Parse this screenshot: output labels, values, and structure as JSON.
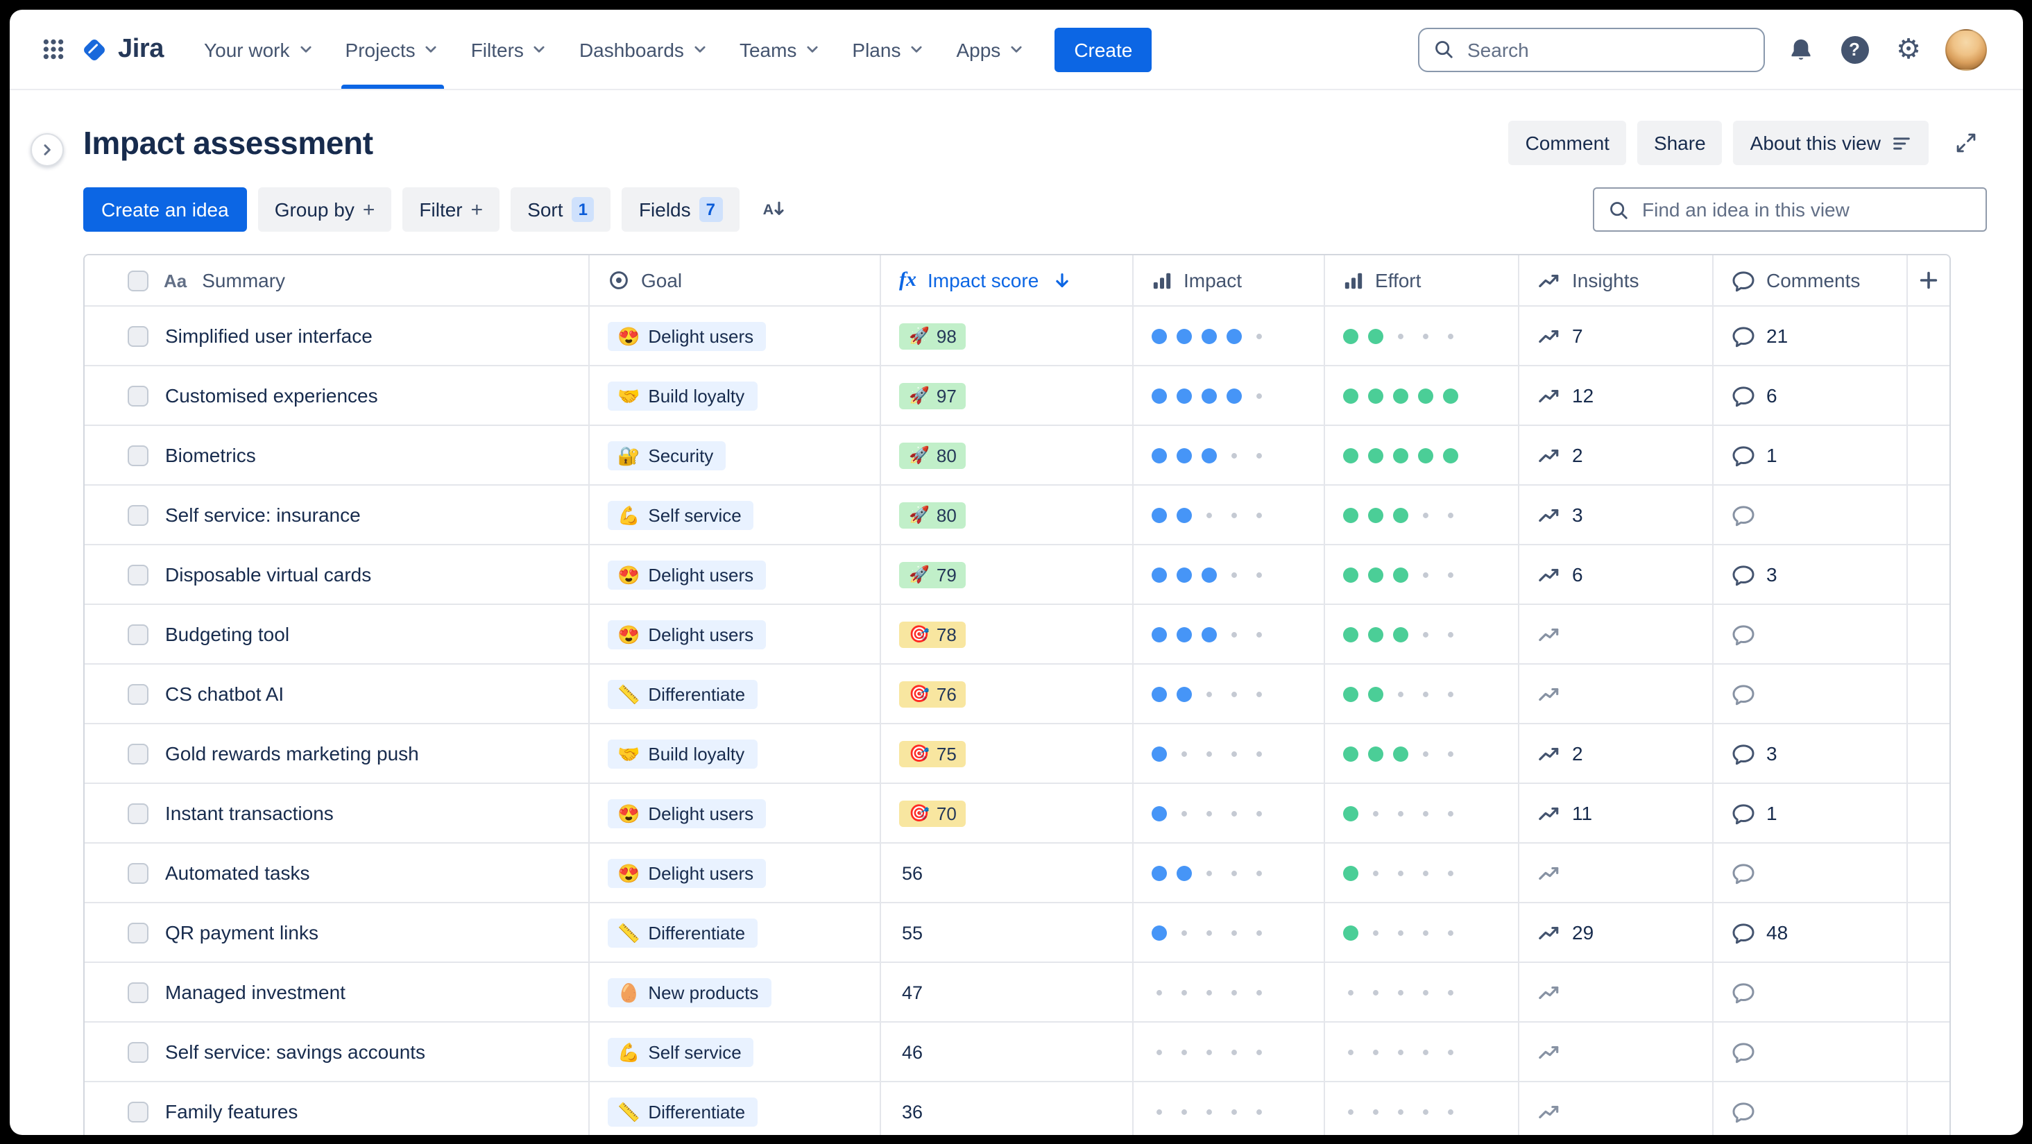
{
  "nav": {
    "logo_text": "Jira",
    "items": [
      {
        "label": "Your work"
      },
      {
        "label": "Projects"
      },
      {
        "label": "Filters"
      },
      {
        "label": "Dashboards"
      },
      {
        "label": "Teams"
      },
      {
        "label": "Plans"
      },
      {
        "label": "Apps"
      }
    ],
    "active_item": "Projects",
    "create_label": "Create",
    "search_placeholder": "Search"
  },
  "icons": {
    "summary_glyph": "Aa",
    "function_glyph": "fx",
    "help_glyph": "?"
  },
  "header": {
    "title": "Impact assessment",
    "actions": {
      "comment": "Comment",
      "share": "Share",
      "about": "About this view"
    }
  },
  "toolbar": {
    "create_idea": "Create an idea",
    "chips": [
      {
        "label": "Group by",
        "suffix": "+"
      },
      {
        "label": "Filter",
        "suffix": "+"
      },
      {
        "label": "Sort",
        "badge": "1"
      },
      {
        "label": "Fields",
        "badge": "7"
      }
    ],
    "find_placeholder": "Find an idea in this view"
  },
  "table": {
    "columns": [
      {
        "id": "summary",
        "label": "Summary",
        "icon": "text-style-icon"
      },
      {
        "id": "goal",
        "label": "Goal",
        "icon": "target-icon"
      },
      {
        "id": "score",
        "label": "Impact score",
        "icon": "function-icon",
        "accent": true,
        "sorted": "desc"
      },
      {
        "id": "impact",
        "label": "Impact",
        "icon": "bar-chart-icon"
      },
      {
        "id": "effort",
        "label": "Effort",
        "icon": "bar-chart-icon"
      },
      {
        "id": "insights",
        "label": "Insights",
        "icon": "trend-icon"
      },
      {
        "id": "comments",
        "label": "Comments",
        "icon": "comment-icon"
      },
      {
        "id": "add",
        "label": "",
        "icon": "plus-icon"
      }
    ],
    "rating_scale_max": 5,
    "rows": [
      {
        "summary": "Simplified user interface",
        "goal": {
          "emoji": "😍",
          "label": "Delight users"
        },
        "score": {
          "value": 98,
          "tier": "green",
          "emoji": "🚀"
        },
        "impact": 4,
        "effort": 2,
        "insights": 7,
        "comments": 21
      },
      {
        "summary": "Customised experiences",
        "goal": {
          "emoji": "🤝",
          "label": "Build loyalty"
        },
        "score": {
          "value": 97,
          "tier": "green",
          "emoji": "🚀"
        },
        "impact": 4,
        "effort": 5,
        "insights": 12,
        "comments": 6
      },
      {
        "summary": "Biometrics",
        "goal": {
          "emoji": "🔐",
          "label": "Security"
        },
        "score": {
          "value": 80,
          "tier": "green",
          "emoji": "🚀"
        },
        "impact": 3,
        "effort": 5,
        "insights": 2,
        "comments": 1
      },
      {
        "summary": "Self service: insurance",
        "goal": {
          "emoji": "💪",
          "label": "Self service"
        },
        "score": {
          "value": 80,
          "tier": "green",
          "emoji": "🚀"
        },
        "impact": 2,
        "effort": 3,
        "insights": 3,
        "comments": null
      },
      {
        "summary": "Disposable virtual cards",
        "goal": {
          "emoji": "😍",
          "label": "Delight users"
        },
        "score": {
          "value": 79,
          "tier": "green",
          "emoji": "🚀"
        },
        "impact": 3,
        "effort": 3,
        "insights": 6,
        "comments": 3
      },
      {
        "summary": "Budgeting tool",
        "goal": {
          "emoji": "😍",
          "label": "Delight users"
        },
        "score": {
          "value": 78,
          "tier": "yellow",
          "emoji": "🎯"
        },
        "impact": 3,
        "effort": 3,
        "insights": null,
        "comments": null
      },
      {
        "summary": "CS chatbot AI",
        "goal": {
          "emoji": "📏",
          "label": "Differentiate"
        },
        "score": {
          "value": 76,
          "tier": "yellow",
          "emoji": "🎯"
        },
        "impact": 2,
        "effort": 2,
        "insights": null,
        "comments": null
      },
      {
        "summary": "Gold rewards marketing push",
        "goal": {
          "emoji": "🤝",
          "label": "Build loyalty"
        },
        "score": {
          "value": 75,
          "tier": "yellow",
          "emoji": "🎯"
        },
        "impact": 1,
        "effort": 3,
        "insights": 2,
        "comments": 3
      },
      {
        "summary": "Instant transactions",
        "goal": {
          "emoji": "😍",
          "label": "Delight users"
        },
        "score": {
          "value": 70,
          "tier": "yellow",
          "emoji": "🎯"
        },
        "impact": 1,
        "effort": 1,
        "insights": 11,
        "comments": 1
      },
      {
        "summary": "Automated tasks",
        "goal": {
          "emoji": "😍",
          "label": "Delight users"
        },
        "score": {
          "value": 56,
          "tier": "none",
          "emoji": null
        },
        "impact": 2,
        "effort": 1,
        "insights": null,
        "comments": null
      },
      {
        "summary": "QR payment links",
        "goal": {
          "emoji": "📏",
          "label": "Differentiate"
        },
        "score": {
          "value": 55,
          "tier": "none",
          "emoji": null
        },
        "impact": 1,
        "effort": 1,
        "insights": 29,
        "comments": 48
      },
      {
        "summary": "Managed investment",
        "goal": {
          "emoji": "🥚",
          "label": "New products"
        },
        "score": {
          "value": 47,
          "tier": "none",
          "emoji": null
        },
        "impact": 0,
        "effort": 0,
        "insights": null,
        "comments": null
      },
      {
        "summary": "Self service: savings accounts",
        "goal": {
          "emoji": "💪",
          "label": "Self service"
        },
        "score": {
          "value": 46,
          "tier": "none",
          "emoji": null
        },
        "impact": 0,
        "effort": 0,
        "insights": null,
        "comments": null
      },
      {
        "summary": "Family features",
        "goal": {
          "emoji": "📏",
          "label": "Differentiate"
        },
        "score": {
          "value": 36,
          "tier": "none",
          "emoji": null
        },
        "impact": 0,
        "effort": 0,
        "insights": null,
        "comments": null
      }
    ]
  },
  "colors": {
    "accent_blue": "#0C66E4",
    "score_green_bg": "#C1EFC9",
    "score_yellow_bg": "#F8E6A0",
    "goal_chip_bg": "#E9F2FF",
    "impact_dot": "#4695F7",
    "effort_dot": "#4BCE97",
    "logo_blue": "#1868DB"
  }
}
